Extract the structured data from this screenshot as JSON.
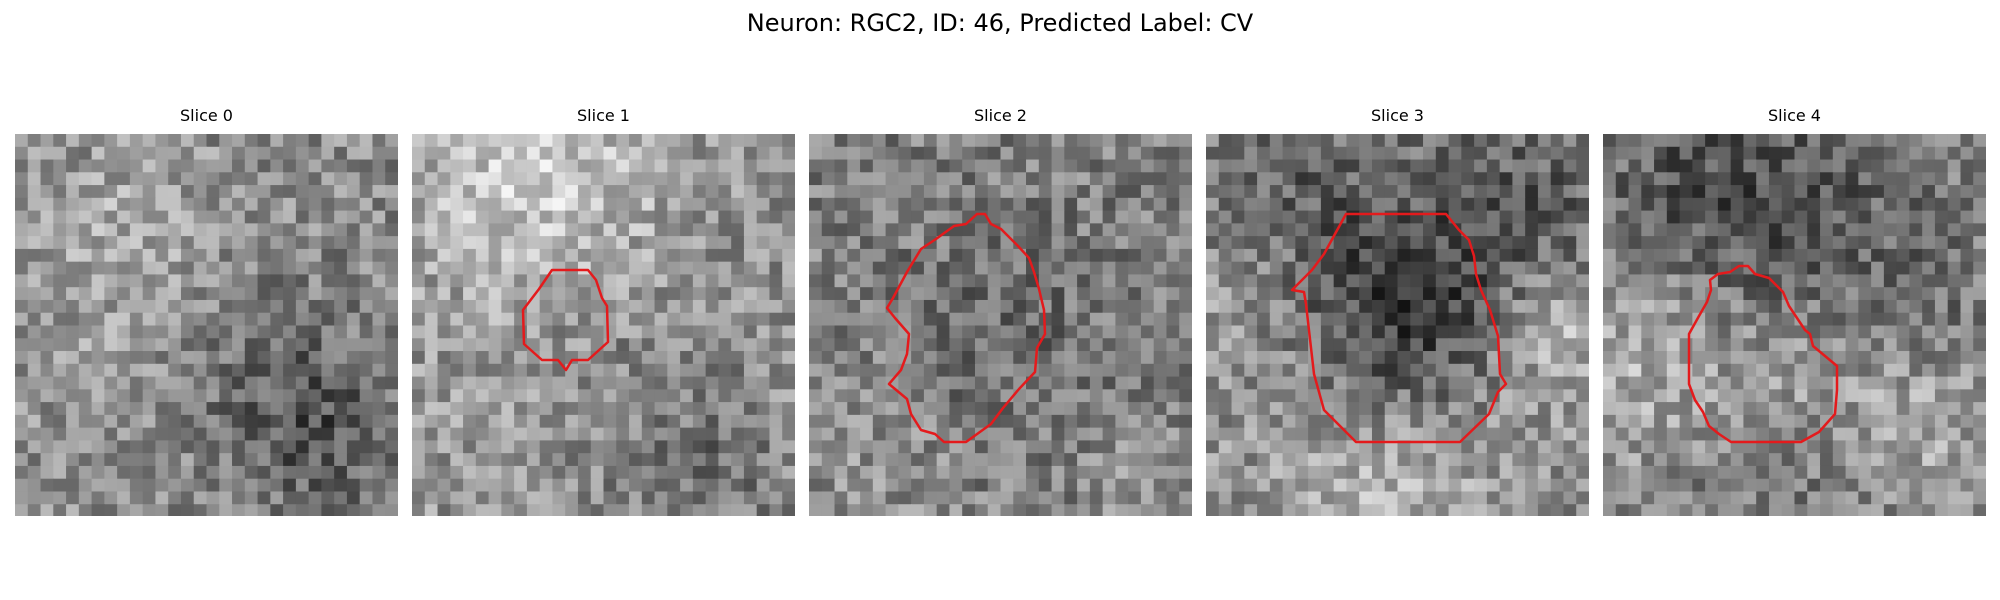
{
  "figure": {
    "title": "Neuron: RGC2, ID: 46, Predicted Label: CV",
    "contour_color": "#e41a1c",
    "colormap": "gray"
  },
  "panels": [
    {
      "title": "Slice 0",
      "has_contour": false
    },
    {
      "title": "Slice 1",
      "has_contour": true
    },
    {
      "title": "Slice 2",
      "has_contour": true
    },
    {
      "title": "Slice 3",
      "has_contour": true
    },
    {
      "title": "Slice 4",
      "has_contour": true
    }
  ]
}
